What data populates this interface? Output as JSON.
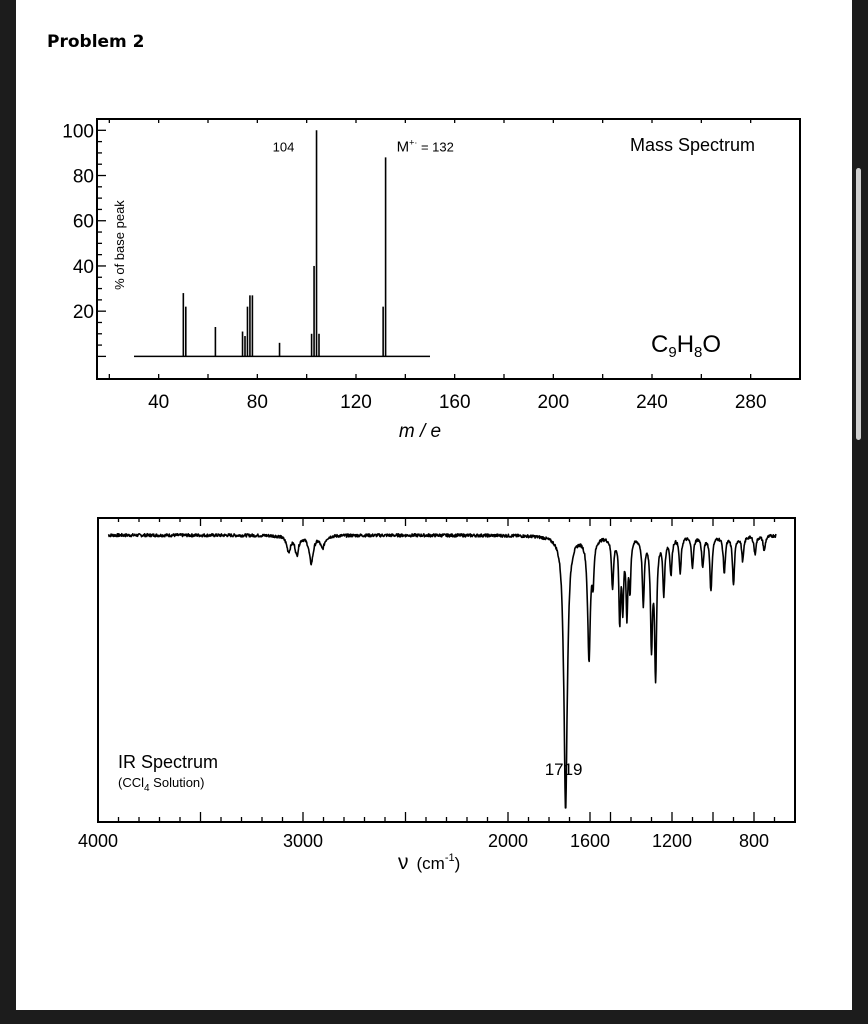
{
  "page": {
    "problem_title": "Problem 2"
  },
  "chart_data": [
    {
      "type": "bar",
      "title": "Mass Spectrum",
      "formula": {
        "base": "C",
        "c_sub": "9",
        "h": "H",
        "h_sub": "8",
        "o": "O"
      },
      "xlabel": "m / e",
      "ylabel": "% of base peak",
      "xlim": [
        15,
        300
      ],
      "ylim": [
        -10,
        105
      ],
      "x_ticks": [
        "40",
        "80",
        "120",
        "160",
        "200",
        "240",
        "280"
      ],
      "x_tick_values": [
        40,
        80,
        120,
        160,
        200,
        240,
        280
      ],
      "y_ticks": [
        "100",
        "80",
        "60",
        "40",
        "20"
      ],
      "y_tick_values": [
        100,
        80,
        60,
        40,
        20
      ],
      "baseline_range": [
        30,
        150
      ],
      "peaks": [
        {
          "mz": 50,
          "intensity": 28
        },
        {
          "mz": 51,
          "intensity": 22
        },
        {
          "mz": 63,
          "intensity": 13
        },
        {
          "mz": 74,
          "intensity": 11
        },
        {
          "mz": 75,
          "intensity": 9
        },
        {
          "mz": 76,
          "intensity": 22
        },
        {
          "mz": 77,
          "intensity": 27
        },
        {
          "mz": 78,
          "intensity": 27
        },
        {
          "mz": 89,
          "intensity": 6
        },
        {
          "mz": 102,
          "intensity": 10
        },
        {
          "mz": 103,
          "intensity": 40
        },
        {
          "mz": 104,
          "intensity": 100
        },
        {
          "mz": 105,
          "intensity": 10
        },
        {
          "mz": 131,
          "intensity": 22
        },
        {
          "mz": 132,
          "intensity": 88
        }
      ],
      "annotations": [
        {
          "text": "104",
          "x": 104,
          "y": 100
        },
        {
          "text": "M",
          "sup": "+·",
          "rest": " = 132",
          "x": 132,
          "y": 100
        }
      ]
    },
    {
      "type": "line",
      "title_line1": "IR Spectrum",
      "title_line2_a": "(CCl",
      "title_line2_sub": "4",
      "title_line2_b": " Solution)",
      "xlabel_nu": "ν",
      "xlabel_unit_a": "(cm",
      "xlabel_unit_sup": "-1",
      "xlabel_unit_b": ")",
      "xlim": [
        4000,
        600
      ],
      "ylim": [
        0,
        100
      ],
      "x_ticks": [
        "4000",
        "3000",
        "2000",
        "1600",
        "1200",
        "800"
      ],
      "x_tick_values": [
        4000,
        3000,
        2000,
        1600,
        1200,
        800
      ],
      "annotations": [
        {
          "text": "1719",
          "x": 1719
        }
      ],
      "baseline_transmittance": 95,
      "noise_amplitude": 0.5,
      "x_start": 3950,
      "x_end": 690,
      "bands": [
        {
          "center": 3070,
          "depth": 5,
          "width": 12
        },
        {
          "center": 3030,
          "depth": 6,
          "width": 10
        },
        {
          "center": 2960,
          "depth": 9,
          "width": 12
        },
        {
          "center": 2905,
          "depth": 4,
          "width": 12
        },
        {
          "center": 1719,
          "depth": 90,
          "width": 10
        },
        {
          "center": 1605,
          "depth": 40,
          "width": 8
        },
        {
          "center": 1585,
          "depth": 12,
          "width": 6
        },
        {
          "center": 1490,
          "depth": 16,
          "width": 6
        },
        {
          "center": 1455,
          "depth": 27,
          "width": 5
        },
        {
          "center": 1440,
          "depth": 22,
          "width": 5
        },
        {
          "center": 1420,
          "depth": 25,
          "width": 5
        },
        {
          "center": 1405,
          "depth": 16,
          "width": 5
        },
        {
          "center": 1340,
          "depth": 22,
          "width": 6
        },
        {
          "center": 1300,
          "depth": 35,
          "width": 6
        },
        {
          "center": 1280,
          "depth": 45,
          "width": 6
        },
        {
          "center": 1240,
          "depth": 18,
          "width": 6
        },
        {
          "center": 1205,
          "depth": 12,
          "width": 6
        },
        {
          "center": 1160,
          "depth": 12,
          "width": 6
        },
        {
          "center": 1100,
          "depth": 10,
          "width": 6
        },
        {
          "center": 1050,
          "depth": 10,
          "width": 6
        },
        {
          "center": 1010,
          "depth": 18,
          "width": 6
        },
        {
          "center": 945,
          "depth": 12,
          "width": 6
        },
        {
          "center": 900,
          "depth": 16,
          "width": 6
        },
        {
          "center": 855,
          "depth": 8,
          "width": 6
        },
        {
          "center": 795,
          "depth": 6,
          "width": 6
        },
        {
          "center": 750,
          "depth": 5,
          "width": 6
        }
      ]
    }
  ]
}
